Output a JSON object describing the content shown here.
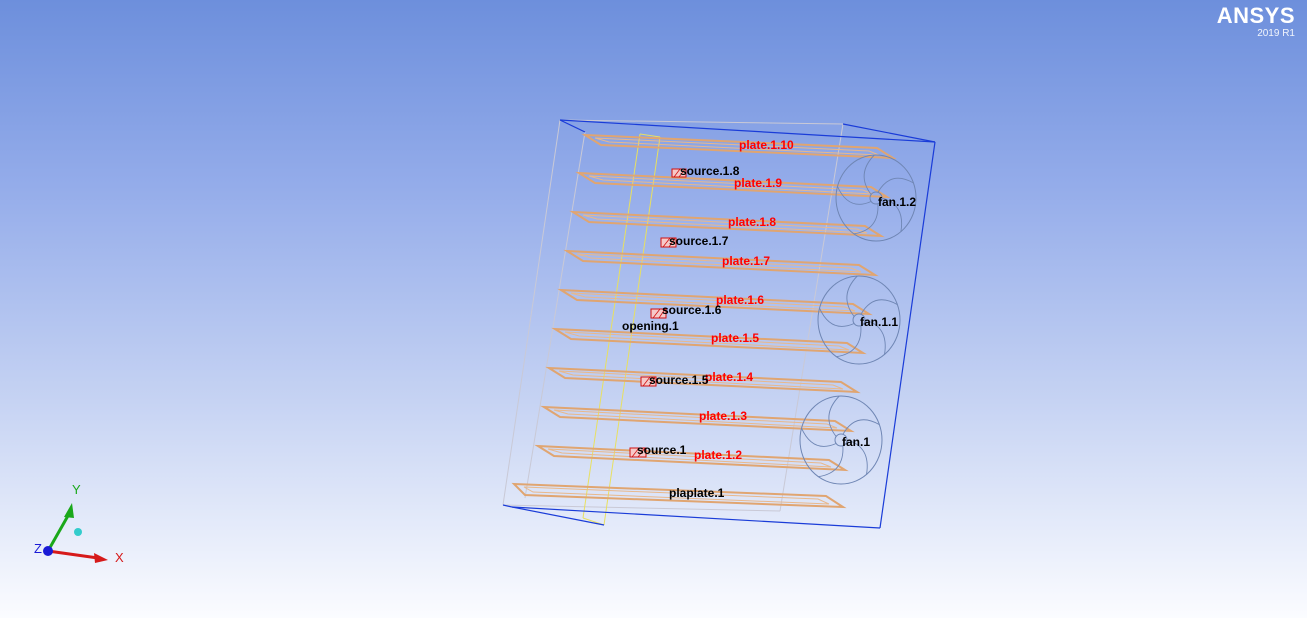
{
  "app": {
    "brand": "ANSYS",
    "version": "2019 R1"
  },
  "axes": {
    "x_label": "X",
    "y_label": "Y",
    "z_label": "Z",
    "x_color": "#d61a1a",
    "y_color": "#1aa81a",
    "z_color": "#1a1ad6"
  },
  "model": {
    "plates": [
      {
        "label": "plate.1.10",
        "color": "#ff0000"
      },
      {
        "label": "plate.1.9",
        "color": "#ff0000"
      },
      {
        "label": "plate.1.8",
        "color": "#ff0000"
      },
      {
        "label": "plate.1.7",
        "color": "#ff0000"
      },
      {
        "label": "plate.1.6",
        "color": "#ff0000"
      },
      {
        "label": "plate.1.5",
        "color": "#ff0000"
      },
      {
        "label": "plate.1.4",
        "color": "#ff0000"
      },
      {
        "label": "plate.1.3",
        "color": "#ff0000"
      },
      {
        "label": "plate.1.2",
        "color": "#ff0000"
      },
      {
        "label": "plaplate.1",
        "color": "#000000"
      }
    ],
    "sources": [
      "source.1.8",
      "source.1.7",
      "source.1.6",
      "source.1.5",
      "source.1"
    ],
    "opening": "opening.1",
    "fans": [
      "fan.1.2",
      "fan.1.1",
      "fan.1"
    ],
    "plate_color": "#e0a571",
    "cabinet_edge_color": "#1a3cd8"
  }
}
